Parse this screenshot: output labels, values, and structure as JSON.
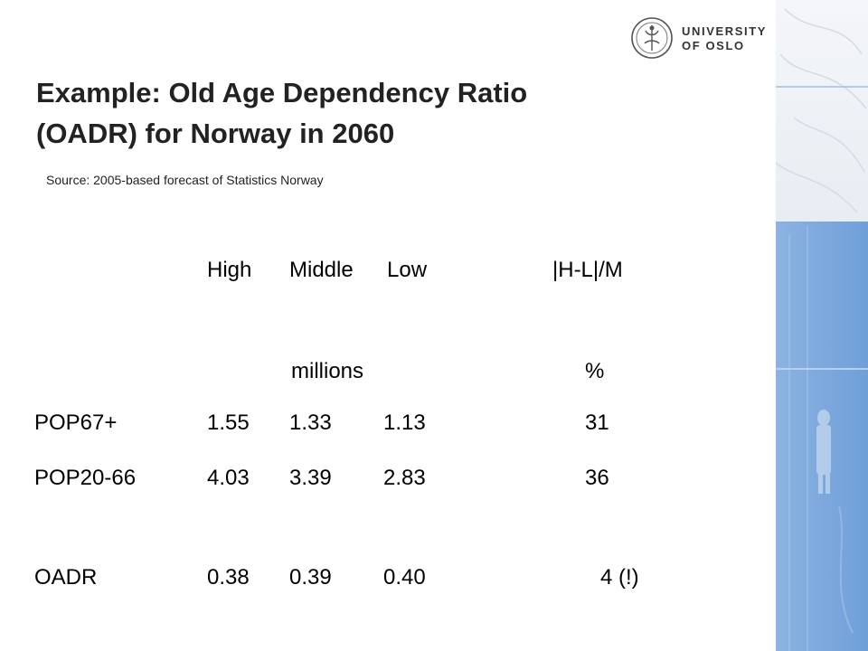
{
  "logo": {
    "line1": "UNIVERSITY",
    "line2": "OF OSLO",
    "seal_icon": "university-seal-icon"
  },
  "title": {
    "line1": "Example: Old Age Dependency Ratio",
    "line2": "(OADR) for Norway in 2060"
  },
  "source": "Source: 2005-based forecast of Statistics Norway",
  "table": {
    "headers": [
      "High",
      "Middle",
      "Low",
      "|H-L|/M"
    ],
    "units": {
      "millions": "millions",
      "percent": "%"
    },
    "rows": [
      {
        "label": "POP67+",
        "high": "1.55",
        "middle": "1.33",
        "low": "1.13",
        "ratio": "31"
      },
      {
        "label": "POP20-66",
        "high": "4.03",
        "middle": "3.39",
        "low": "2.83",
        "ratio": "36"
      },
      {
        "label": "OADR",
        "high": "0.38",
        "middle": "0.39",
        "low": "0.40",
        "ratio": "4 (!)"
      }
    ]
  },
  "colors": {
    "band": "#7aa6dc",
    "band_light": "#cfdcec",
    "title": "#222222"
  }
}
